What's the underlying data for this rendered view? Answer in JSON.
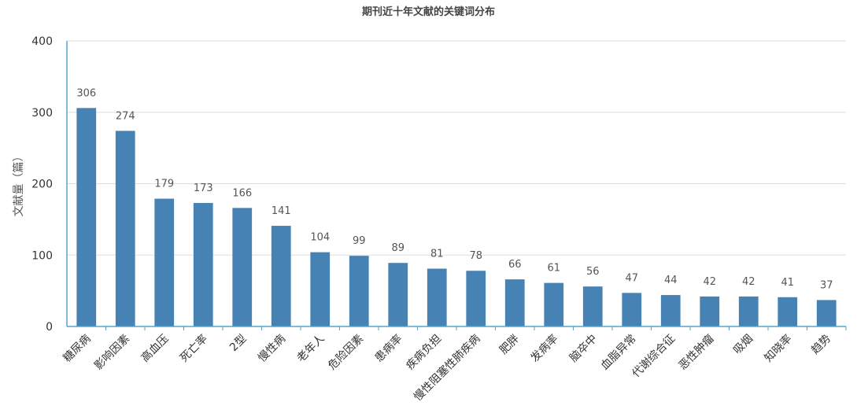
{
  "chart_data": {
    "type": "bar",
    "title": "期刊近十年文献的关键词分布",
    "xlabel": "",
    "ylabel": "文献量（篇）",
    "ylim": [
      0,
      400
    ],
    "yticks": [
      0,
      100,
      200,
      300,
      400
    ],
    "grid": true,
    "categories": [
      "糖尿病",
      "影响因素",
      "高血压",
      "死亡率",
      "2型",
      "慢性病",
      "老年人",
      "危险因素",
      "患病率",
      "疾病负担",
      "慢性阻塞性肺疾病",
      "肥胖",
      "发病率",
      "脑卒中",
      "血脂异常",
      "代谢综合征",
      "恶性肿瘤",
      "吸烟",
      "知晓率",
      "趋势"
    ],
    "values": [
      306,
      274,
      179,
      173,
      166,
      141,
      104,
      99,
      89,
      81,
      78,
      66,
      61,
      56,
      47,
      44,
      42,
      42,
      41,
      37
    ],
    "colors": {
      "bar": "#4682b4",
      "axis": "#55a6cf",
      "grid": "#dddddd"
    }
  }
}
